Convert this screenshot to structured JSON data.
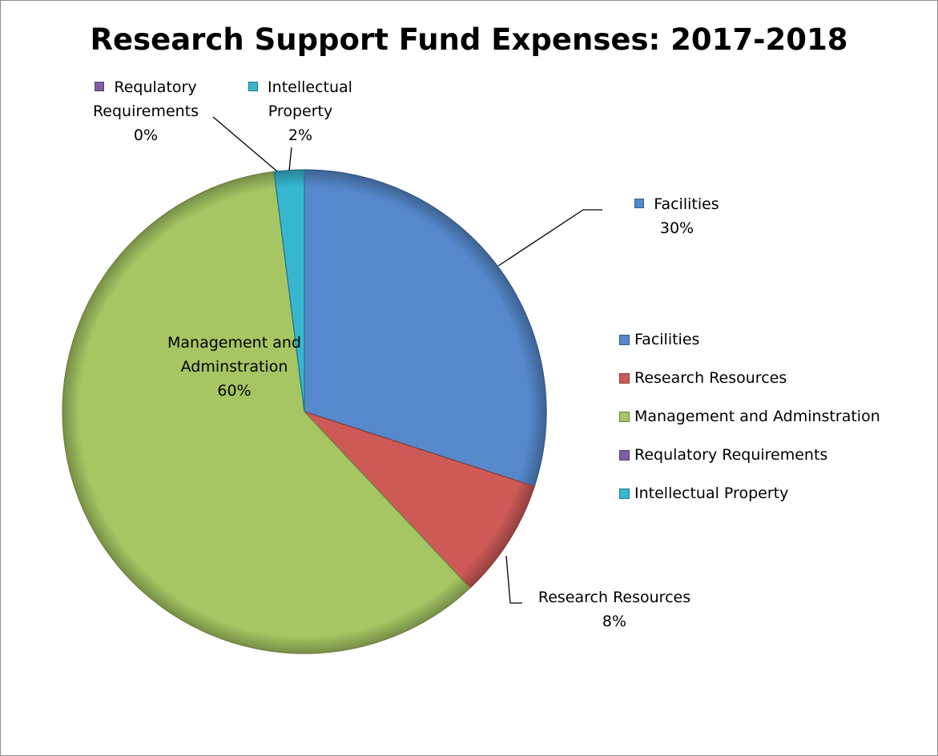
{
  "chart_data": {
    "type": "pie",
    "title": "Research Support Fund Expenses: 2017-2018",
    "categories": [
      "Facilities",
      "Research Resources",
      "Management and Adminstration",
      "Requlatory Requirements",
      "Intellectual Property"
    ],
    "values": [
      30,
      8,
      60,
      0,
      2
    ],
    "value_labels": [
      "30%",
      "8%",
      "60%",
      "0%",
      "2%"
    ],
    "colors": [
      "#5589cc",
      "#ce5a57",
      "#a5c663",
      "#7f5fa3",
      "#36b7cf"
    ],
    "legend": {
      "placement": "right",
      "entries": [
        "Facilities",
        "Research Resources",
        "Management and Adminstration",
        "Requlatory Requirements",
        "Intellectual Property"
      ]
    },
    "data_labels": [
      {
        "lines": [
          "Facilities",
          "30%"
        ],
        "swatch": true
      },
      {
        "lines": [
          "Research Resources",
          "8%"
        ],
        "swatch": false
      },
      {
        "lines": [
          "Management and",
          "Adminstration",
          "60%"
        ],
        "swatch": false
      },
      {
        "lines": [
          "Requlatory",
          "Requirements",
          "0%"
        ],
        "swatch": true
      },
      {
        "lines": [
          "Intellectual",
          "Property",
          "2%"
        ],
        "swatch": true
      }
    ]
  }
}
